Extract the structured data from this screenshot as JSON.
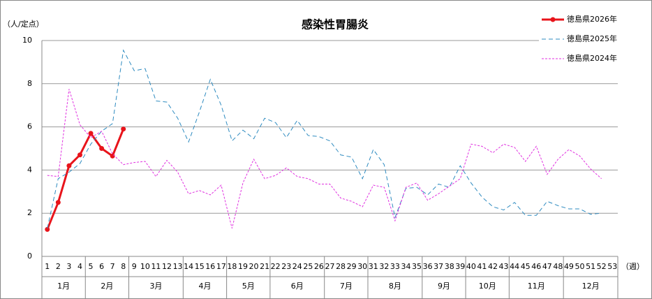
{
  "chart_data": {
    "type": "line",
    "title": "感染性胃腸炎",
    "y_label": "（人/定点）",
    "x_label": "（週）",
    "categories": [
      "1",
      "2",
      "3",
      "4",
      "5",
      "6",
      "7",
      "8",
      "9",
      "10",
      "11",
      "12",
      "13",
      "14",
      "15",
      "16",
      "17",
      "18",
      "19",
      "20",
      "21",
      "22",
      "23",
      "24",
      "25",
      "26",
      "27",
      "28",
      "29",
      "30",
      "31",
      "32",
      "33",
      "34",
      "35",
      "36",
      "37",
      "38",
      "39",
      "40",
      "41",
      "42",
      "43",
      "44",
      "45",
      "46",
      "47",
      "48",
      "49",
      "50",
      "51",
      "52",
      "53"
    ],
    "months": [
      {
        "label": "1月",
        "weeks": 4
      },
      {
        "label": "2月",
        "weeks": 4
      },
      {
        "label": "3月",
        "weeks": 5
      },
      {
        "label": "4月",
        "weeks": 4
      },
      {
        "label": "5月",
        "weeks": 4
      },
      {
        "label": "6月",
        "weeks": 5
      },
      {
        "label": "7月",
        "weeks": 4
      },
      {
        "label": "8月",
        "weeks": 5
      },
      {
        "label": "9月",
        "weeks": 4
      },
      {
        "label": "10月",
        "weeks": 4
      },
      {
        "label": "11月",
        "weeks": 5
      },
      {
        "label": "12月",
        "weeks": 5
      }
    ],
    "ylim": [
      0,
      10
    ],
    "yticks": [
      0,
      2,
      4,
      6,
      8,
      10
    ],
    "grid": true,
    "legend": "top-right",
    "series": [
      {
        "name": "徳島県2026年",
        "color": "#e8141b",
        "style": "solid",
        "markers": true,
        "values": [
          1.25,
          2.5,
          4.2,
          4.7,
          5.7,
          5.0,
          4.65,
          5.9,
          null,
          null,
          null,
          null,
          null,
          null,
          null,
          null,
          null,
          null,
          null,
          null,
          null,
          null,
          null,
          null,
          null,
          null,
          null,
          null,
          null,
          null,
          null,
          null,
          null,
          null,
          null,
          null,
          null,
          null,
          null,
          null,
          null,
          null,
          null,
          null,
          null,
          null,
          null,
          null,
          null,
          null,
          null,
          null,
          null
        ]
      },
      {
        "name": "徳島県2025年",
        "color": "#2e8bc0",
        "style": "dashed",
        "markers": false,
        "values": [
          1.3,
          3.6,
          3.9,
          4.3,
          5.2,
          5.8,
          6.15,
          9.55,
          8.6,
          8.7,
          7.2,
          7.15,
          6.4,
          5.3,
          6.7,
          8.2,
          7.0,
          5.35,
          5.85,
          5.45,
          6.4,
          6.2,
          5.5,
          6.3,
          5.6,
          5.55,
          5.35,
          4.7,
          4.6,
          3.6,
          4.95,
          4.25,
          1.8,
          3.15,
          3.2,
          2.85,
          3.35,
          3.2,
          4.2,
          3.4,
          2.75,
          2.3,
          2.15,
          2.5,
          1.9,
          1.9,
          2.55,
          2.35,
          2.2,
          2.2,
          1.95,
          2.0,
          null
        ]
      },
      {
        "name": "徳島県2024年",
        "color": "#e030e0",
        "style": "dotted",
        "markers": false,
        "values": [
          3.75,
          3.7,
          7.75,
          6.1,
          5.5,
          5.8,
          4.75,
          4.25,
          4.35,
          4.4,
          3.7,
          4.45,
          3.9,
          2.9,
          3.05,
          2.85,
          3.3,
          1.3,
          3.4,
          4.5,
          3.6,
          3.75,
          4.1,
          3.7,
          3.6,
          3.35,
          3.35,
          2.7,
          2.55,
          2.3,
          3.3,
          3.2,
          1.65,
          3.2,
          3.4,
          2.6,
          2.9,
          3.25,
          3.6,
          5.2,
          5.1,
          4.8,
          5.2,
          5.05,
          4.4,
          5.1,
          3.8,
          4.5,
          4.95,
          4.65,
          4.05,
          3.6,
          null
        ]
      }
    ]
  }
}
